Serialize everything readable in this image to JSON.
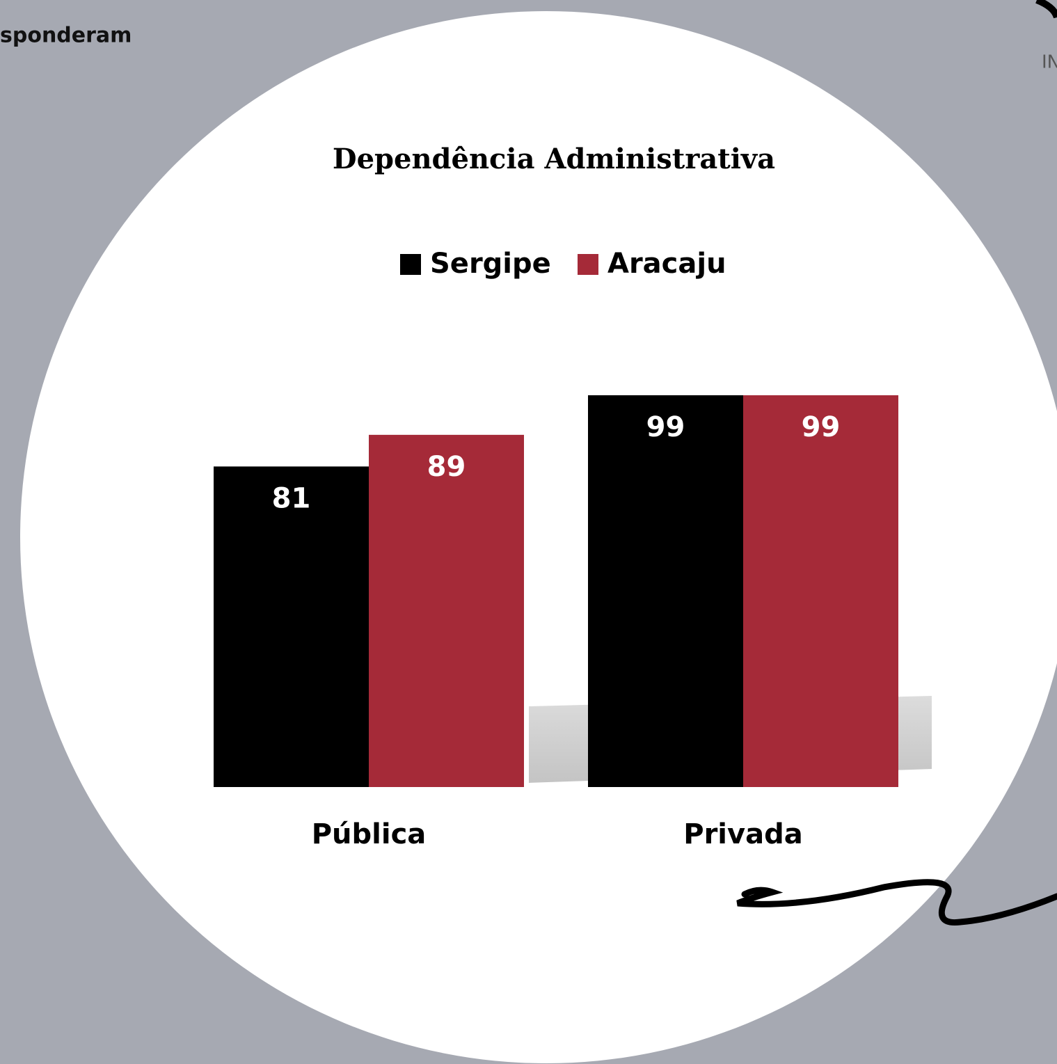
{
  "header_fragment": "sponderam",
  "logo_fragment": "IN",
  "chart_data": {
    "type": "bar",
    "title": "Dependência Administrativa",
    "categories": [
      "Pública",
      "Privada"
    ],
    "series": [
      {
        "name": "Sergipe",
        "color": "#000000",
        "values": [
          81,
          99
        ]
      },
      {
        "name": "Aracaju",
        "color": "#a52a38",
        "values": [
          89,
          99
        ]
      }
    ]
  }
}
